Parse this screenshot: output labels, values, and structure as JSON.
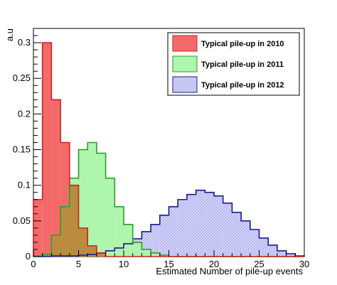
{
  "chart_data": {
    "type": "bar",
    "title": "",
    "xlabel": "Estimated Number of pile-up events",
    "ylabel": "a.u",
    "xlim": [
      0,
      30
    ],
    "ylim": [
      0,
      0.32
    ],
    "x_ticks": [
      0,
      5,
      10,
      15,
      20,
      25,
      30
    ],
    "y_ticks": [
      0,
      0.05,
      0.1,
      0.15,
      0.2,
      0.25,
      0.3
    ],
    "y_tick_labels": [
      "0",
      "0.05",
      "0.1",
      "0.15",
      "0.2",
      "0.25",
      "0.3"
    ],
    "bin_edges_start": 0,
    "bin_width": 1,
    "legend_position": "top-right",
    "series": [
      {
        "name": "Typical pile-up in 2010",
        "fill": "#f46a6a",
        "line": "#d42020",
        "values": [
          0.08,
          0.3,
          0.22,
          0.16,
          0.1,
          0.04,
          0.015,
          0.005,
          0,
          0,
          0,
          0,
          0,
          0,
          0,
          0,
          0,
          0,
          0,
          0,
          0,
          0,
          0,
          0,
          0,
          0,
          0,
          0,
          0,
          0
        ]
      },
      {
        "name": "Typical pile-up in 2011",
        "fill": "#aef5ae",
        "line": "#2aa02a",
        "values": [
          0.001,
          0.003,
          0.03,
          0.07,
          0.11,
          0.15,
          0.16,
          0.145,
          0.11,
          0.07,
          0.045,
          0.02,
          0.01,
          0.005,
          0.002,
          0,
          0,
          0,
          0,
          0,
          0,
          0,
          0,
          0,
          0,
          0,
          0,
          0,
          0,
          0
        ]
      },
      {
        "name": "Typical pile-up in 2012",
        "fill": "#c8c8ff",
        "line": "#1a1a8a",
        "hatch": true,
        "values": [
          0,
          0,
          0.001,
          0.001,
          0.001,
          0.002,
          0.003,
          0.005,
          0.008,
          0.012,
          0.018,
          0.025,
          0.035,
          0.045,
          0.058,
          0.07,
          0.08,
          0.087,
          0.093,
          0.09,
          0.085,
          0.075,
          0.062,
          0.05,
          0.038,
          0.026,
          0.016,
          0.008,
          0.004,
          0.001
        ]
      }
    ],
    "overlap_fill": "#c8a050"
  }
}
